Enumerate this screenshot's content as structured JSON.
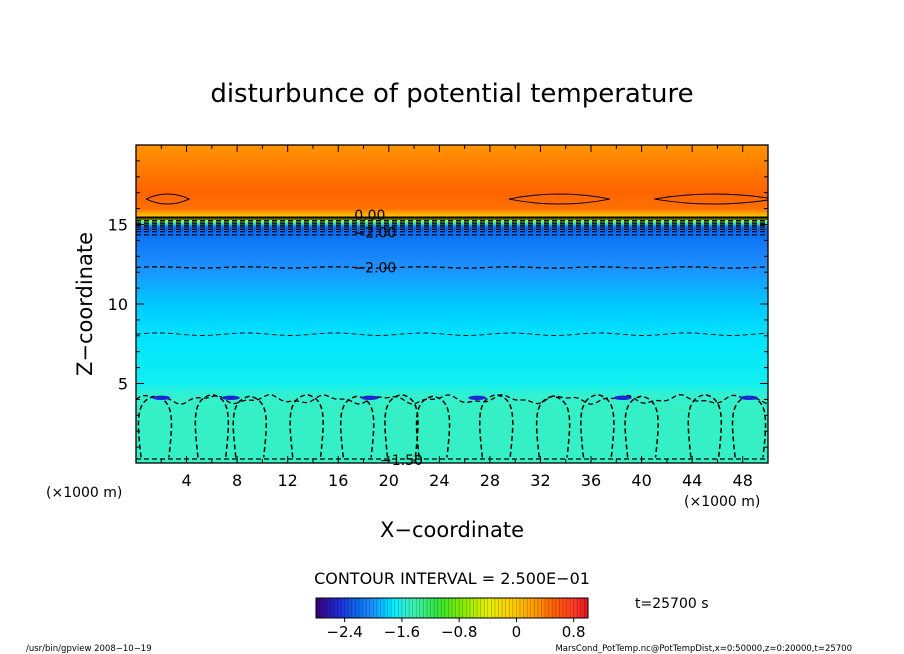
{
  "chart_data": {
    "type": "heatmap",
    "title": "disturbunce of potential temperature",
    "xlabel": "X−coordinate",
    "ylabel": "Z−coordinate",
    "x_unit": "(×1000 m)",
    "y_unit": "(×1000 m)",
    "xlim": [
      0,
      50
    ],
    "ylim": [
      0,
      20
    ],
    "x_ticks": [
      4,
      8,
      12,
      16,
      20,
      24,
      28,
      32,
      36,
      40,
      44,
      48
    ],
    "y_ticks": [
      5,
      10,
      15
    ],
    "profile": [
      {
        "z": 0.0,
        "value": -1.5
      },
      {
        "z": 3.5,
        "value": -1.5
      },
      {
        "z": 4.3,
        "value": -1.55
      },
      {
        "z": 5.0,
        "value": -1.65
      },
      {
        "z": 8.0,
        "value": -1.75
      },
      {
        "z": 10.0,
        "value": -1.85
      },
      {
        "z": 12.3,
        "value": -2.0
      },
      {
        "z": 14.0,
        "value": -2.15
      },
      {
        "z": 14.8,
        "value": -2.25
      },
      {
        "z": 15.1,
        "value": -1.5
      },
      {
        "z": 15.3,
        "value": -0.5
      },
      {
        "z": 15.5,
        "value": 0.0
      },
      {
        "z": 16.0,
        "value": 0.45
      },
      {
        "z": 17.0,
        "value": 0.5
      },
      {
        "z": 18.5,
        "value": 0.4
      },
      {
        "z": 20.0,
        "value": 0.3
      }
    ],
    "contour_labels": [
      {
        "text": "0.00",
        "x": 18.5,
        "z": 15.6
      },
      {
        "text": "−2.00",
        "x": 18.9,
        "z": 14.5
      },
      {
        "text": "−2.00",
        "x": 18.9,
        "z": 12.3
      },
      {
        "text": "−1.50",
        "x": 21.0,
        "z": 0.2
      }
    ],
    "contour_interval_label": "CONTOUR INTERVAL = 2.500E−01",
    "colorbar": {
      "min": -2.8,
      "max": 1.0,
      "ticks": [
        "−2.4",
        "−1.6",
        "−0.8",
        "0",
        "0.8"
      ],
      "tick_values": [
        -2.4,
        -1.6,
        -0.8,
        0,
        0.8
      ]
    },
    "time_label": "t=25700 s",
    "footer_left": "/usr/bin/gpview   2008−10−19",
    "footer_right": "MarsCond_PotTemp.nc@PotTempDist,x=0:50000,z=0:20000,t=25700",
    "colors": {
      "stops": [
        {
          "v": -2.8,
          "c": "#3a0078"
        },
        {
          "v": -2.5,
          "c": "#1e28d2"
        },
        {
          "v": -2.2,
          "c": "#0a6ef0"
        },
        {
          "v": -2.0,
          "c": "#1e90ff"
        },
        {
          "v": -1.85,
          "c": "#00c8ff"
        },
        {
          "v": -1.7,
          "c": "#00f0ff"
        },
        {
          "v": -1.55,
          "c": "#32f0d2"
        },
        {
          "v": -1.4,
          "c": "#3cf0aa"
        },
        {
          "v": -1.1,
          "c": "#32e63c"
        },
        {
          "v": -0.8,
          "c": "#78ec00"
        },
        {
          "v": -0.4,
          "c": "#e6f000"
        },
        {
          "v": 0.0,
          "c": "#ffc800"
        },
        {
          "v": 0.3,
          "c": "#ff9400"
        },
        {
          "v": 0.5,
          "c": "#ff6400"
        },
        {
          "v": 0.8,
          "c": "#ff3c28"
        },
        {
          "v": 1.0,
          "c": "#e6141e"
        }
      ]
    }
  }
}
